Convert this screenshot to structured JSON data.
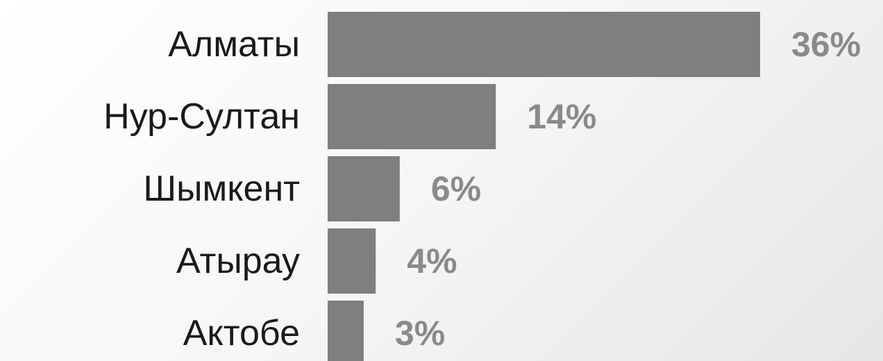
{
  "colors": {
    "bar": "#7f7f7f",
    "value_label": "#8a8a8a",
    "category_label": "#1a1a1a"
  },
  "chart_data": {
    "type": "bar",
    "orientation": "horizontal",
    "categories": [
      "Алматы",
      "Нур-Султан",
      "Шымкент",
      "Атырау",
      "Актобе"
    ],
    "values": [
      36,
      14,
      6,
      4,
      3
    ],
    "value_labels": [
      "36%",
      "14%",
      "6%",
      "4%",
      "3%"
    ],
    "title": "",
    "xlabel": "",
    "ylabel": "",
    "xlim": [
      0,
      36
    ],
    "grid": false,
    "legend": "none"
  }
}
